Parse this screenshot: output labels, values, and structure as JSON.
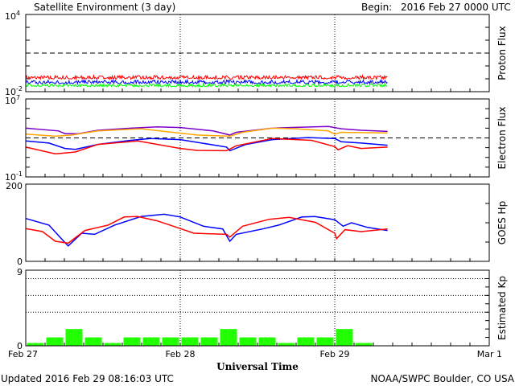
{
  "header": {
    "title": "Satellite Environment (3 day)",
    "begin_label": "Begin:",
    "begin_value": "2016 Feb 27 0000 UTC"
  },
  "footer": {
    "updated": "Updated 2016 Feb 29 08:16:03 UTC",
    "credit": "NOAA/SWPC Boulder, CO USA"
  },
  "xaxis": {
    "title": "Universal Time",
    "range_hours": [
      0,
      72
    ],
    "tick_labels": [
      "Feb 27",
      "Feb 28",
      "Feb 29",
      "Mar 1"
    ],
    "minor_tick_hours": 3,
    "day_lines_hours": [
      24,
      48
    ]
  },
  "colors": {
    "red": "#ff0000",
    "blue": "#0000ff",
    "green": "#00ff00",
    "purple": "#7b00c8",
    "orange": "#ffa500",
    "kp": "#22ff00"
  },
  "chart_data": [
    {
      "id": "proton",
      "type": "line",
      "ylabel": "Proton Flux",
      "scale": "log",
      "ylim_log10": [
        -2,
        4
      ],
      "ytick_labels": [
        {
          "base": "10",
          "exp": "4"
        },
        {
          "base": "10",
          "exp": "-2"
        }
      ],
      "threshold_log10": 1,
      "noisy": true,
      "series": [
        {
          "name": "red",
          "color": "#ff0000",
          "x": [
            0,
            56.2
          ],
          "y_log10": [
            -0.94,
            -0.94
          ],
          "noise_log10": 0.28
        },
        {
          "name": "blue",
          "color": "#0000ff",
          "x": [
            0,
            56.2
          ],
          "y_log10": [
            -1.3,
            -1.3
          ],
          "noise_log10": 0.3
        },
        {
          "name": "green",
          "color": "#00ff00",
          "x": [
            0,
            56.2
          ],
          "y_log10": [
            -1.55,
            -1.55
          ],
          "noise_log10": 0.22
        }
      ]
    },
    {
      "id": "electron",
      "type": "line",
      "ylabel": "Electron Flux",
      "scale": "log",
      "ylim_log10": [
        -1,
        7
      ],
      "ytick_labels": [
        {
          "base": "10",
          "exp": "7"
        },
        {
          "base": "10",
          "exp": "-1"
        }
      ],
      "threshold_log10": 3,
      "series": [
        {
          "name": "purple",
          "color": "#7b00c8",
          "x": [
            0,
            5.1,
            6.1,
            8.2,
            11.2,
            16.3,
            20.4,
            24,
            29.1,
            31.7,
            32.7,
            38.3,
            41.9,
            47,
            49,
            52.1,
            56.2
          ],
          "y_log10": [
            4.0,
            3.72,
            3.44,
            3.44,
            3.78,
            4.0,
            4.14,
            4.06,
            3.72,
            3.3,
            3.58,
            4.0,
            4.08,
            4.17,
            3.94,
            3.78,
            3.67
          ]
        },
        {
          "name": "orange",
          "color": "#ffa500",
          "x": [
            0,
            4.6,
            7.2,
            11.2,
            17.9,
            21.5,
            26.6,
            31.7,
            33.7,
            38.3,
            41.9,
            47,
            48,
            49,
            56.2
          ],
          "y_log10": [
            3.39,
            3.17,
            3.3,
            3.72,
            3.94,
            3.67,
            3.3,
            3.17,
            3.58,
            4.0,
            3.94,
            3.72,
            3.39,
            3.58,
            3.5
          ]
        },
        {
          "name": "blue",
          "color": "#0000ff",
          "x": [
            0,
            3.6,
            6.1,
            7.7,
            11.2,
            16.3,
            19.4,
            24,
            31.2,
            31.7,
            34.2,
            38.3,
            43.9,
            48,
            49,
            52.1,
            56.2
          ],
          "y_log10": [
            2.69,
            2.47,
            1.92,
            1.83,
            2.33,
            2.75,
            2.94,
            2.83,
            2.06,
            1.69,
            2.33,
            2.83,
            3.03,
            2.94,
            2.61,
            2.47,
            2.25
          ]
        },
        {
          "name": "red",
          "color": "#ff0000",
          "x": [
            0,
            4.6,
            7.7,
            11.2,
            17.4,
            24,
            26.6,
            31.2,
            32.7,
            38.3,
            44.4,
            48,
            48.5,
            50,
            52.1,
            56.2
          ],
          "y_log10": [
            2.06,
            1.36,
            1.56,
            2.33,
            2.69,
            1.92,
            1.72,
            1.69,
            2.19,
            2.94,
            2.75,
            2.11,
            1.78,
            2.2,
            1.92,
            2.06
          ]
        }
      ]
    },
    {
      "id": "goes-hp",
      "type": "line",
      "ylabel": "GOES Hp",
      "scale": "linear",
      "ylim": [
        0,
        200
      ],
      "ytick_labels": [
        "200",
        "0"
      ],
      "ytick_step": 50,
      "series": [
        {
          "name": "blue",
          "color": "#0000ff",
          "x": [
            0,
            3.6,
            5.9,
            6.6,
            8.7,
            10.7,
            13.8,
            17.9,
            21.5,
            24,
            27.6,
            30.6,
            31.7,
            32.7,
            36.8,
            39.3,
            42.9,
            44.9,
            48,
            49.3,
            50.6,
            53.1,
            56.2
          ],
          "y": [
            111,
            94,
            52,
            40,
            73,
            70,
            94,
            116,
            122,
            115,
            91,
            84,
            52,
            70,
            84,
            94,
            115,
            116,
            108,
            91,
            100,
            88,
            80
          ]
        },
        {
          "name": "red",
          "color": "#ff0000",
          "x": [
            0,
            2.6,
            4.6,
            6.6,
            9.2,
            12.8,
            15.3,
            17.4,
            20.4,
            24,
            26.1,
            31.2,
            31.7,
            33.7,
            37.8,
            40.9,
            45,
            48,
            48.3,
            49.6,
            52.1,
            56.2
          ],
          "y": [
            85,
            77,
            52,
            47,
            80,
            94,
            115,
            116,
            105,
            85,
            73,
            70,
            63,
            91,
            109,
            114,
            101,
            73,
            59,
            82,
            77,
            84
          ]
        }
      ]
    },
    {
      "id": "kp",
      "type": "bar",
      "ylabel": "Estimated Kp",
      "scale": "linear",
      "ylim": [
        0,
        9
      ],
      "ytick_labels": [
        "9",
        "0"
      ],
      "gridlines": [
        4,
        6,
        8
      ],
      "bin_hours": 3,
      "color": "#22ff00",
      "values": [
        0.33,
        1,
        2,
        1,
        0.33,
        1,
        1,
        1,
        1,
        1,
        2,
        1,
        1,
        0.33,
        1,
        1,
        2,
        0.33
      ]
    }
  ]
}
